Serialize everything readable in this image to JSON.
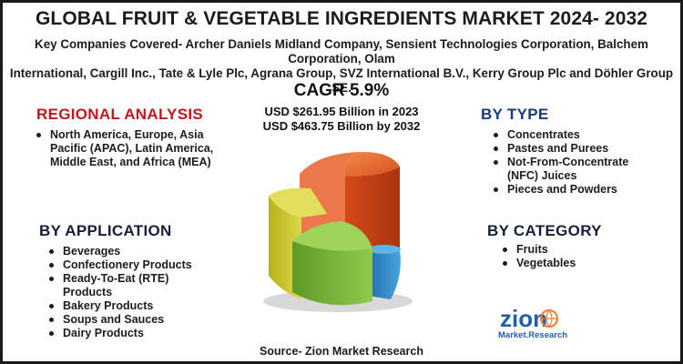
{
  "title": "GLOBAL FRUIT & VEGETABLE INGREDIENTS MARKET 2024- 2032",
  "companies": {
    "line1": "Key Companies Covered- Archer Daniels Midland Company, Sensient Technologies Corporation, Balchem Corporation, Olam",
    "line2": "International, Cargill Inc., Tate & Lyle Plc, Agrana Group, SVZ International B.V., Kerry Group Plc and Döhler Group SE."
  },
  "cagr": "CAGR 5.9%",
  "market": {
    "value_2023": "USD $261.95 Billion in 2023",
    "value_2032": "USD $463.75 Billion by 2032"
  },
  "regional_analysis": {
    "heading": "REGIONAL ANALYSIS",
    "items": [
      "North America, Europe, Asia Pacific (APAC), Latin America, Middle East, and Africa (MEA)"
    ]
  },
  "by_application": {
    "heading": "BY APPLICATION",
    "items": [
      "Beverages",
      "Confectionery Products",
      "Ready-To-Eat (RTE) Products",
      "Bakery Products",
      "Soups and Sauces",
      "Dairy Products"
    ]
  },
  "by_type": {
    "heading": "BY TYPE",
    "items": [
      "Concentrates",
      "Pastes and Purees",
      "Not-From-Concentrate (NFC) Juices",
      "Pieces and Powders"
    ]
  },
  "by_category": {
    "heading": "BY CATEGORY",
    "items": [
      "Fruits",
      "Vegetables"
    ]
  },
  "source": "Source- Zion Market Research",
  "logo": {
    "word": "zion",
    "tagline": "Market.Research"
  },
  "colors": {
    "red_heading": "#c4161c",
    "blue_heading": "#1d3a78",
    "orange_slice": "#e8602c",
    "yellow_slice": "#c9c62a",
    "green_slice": "#7ab83a",
    "blue_slice": "#2f8fcf",
    "logo_blue": "#1f5fae"
  }
}
